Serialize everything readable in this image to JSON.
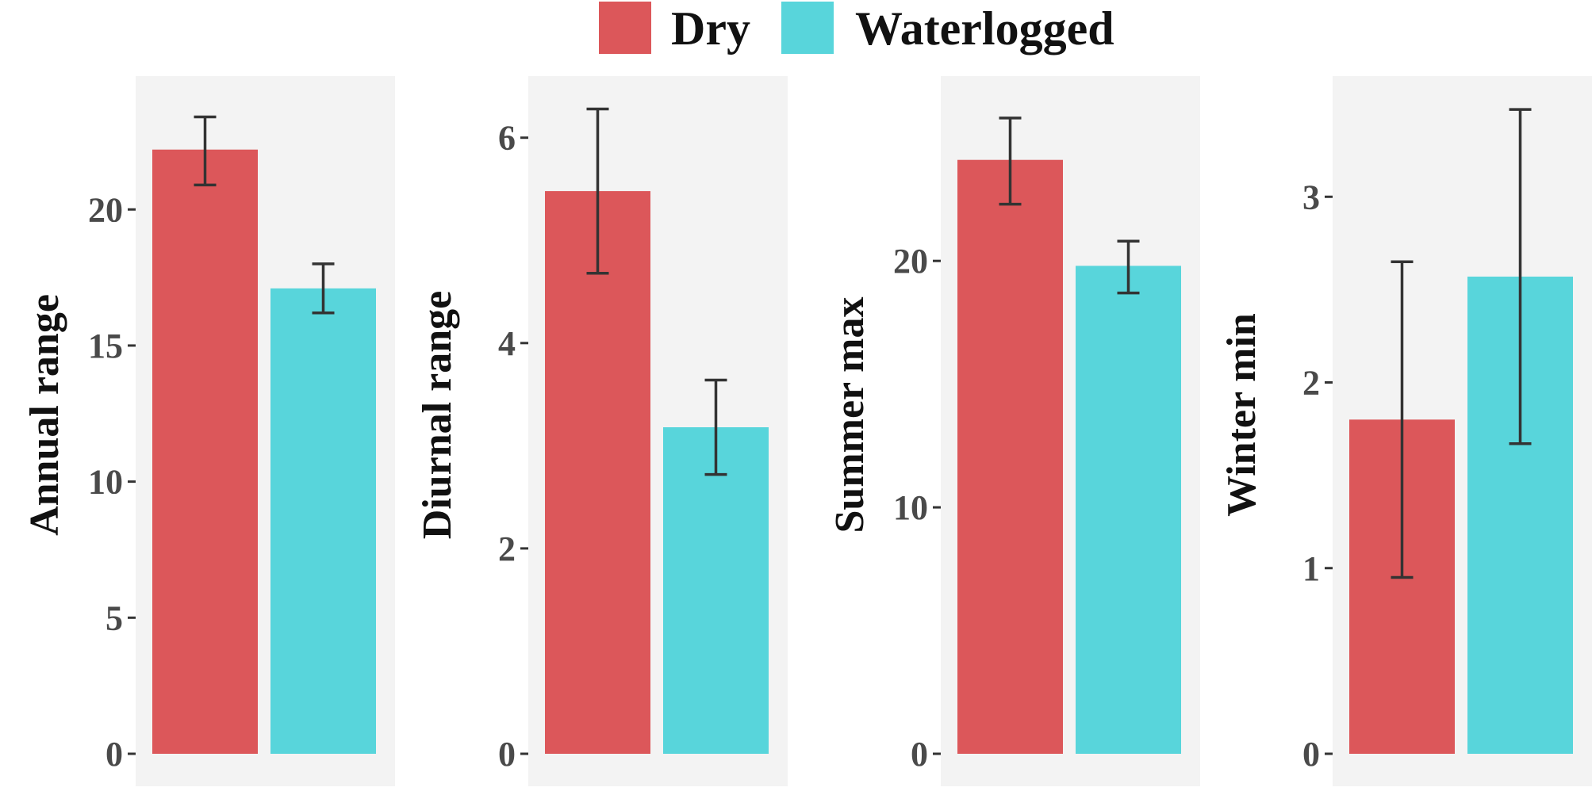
{
  "legend": {
    "items": [
      {
        "label": "Dry",
        "color": "#DC575A"
      },
      {
        "label": "Waterlogged",
        "color": "#58D5DB"
      }
    ]
  },
  "chart_data": [
    {
      "type": "bar",
      "ylabel": "Annual range",
      "ylim": [
        0,
        24.9
      ],
      "yticks": [
        0,
        5,
        10,
        15,
        20
      ],
      "categories": [
        "Dry",
        "Waterlogged"
      ],
      "values": [
        22.2,
        17.1
      ],
      "errors": [
        [
          20.9,
          23.4
        ],
        [
          16.2,
          18.0
        ]
      ],
      "grid": false
    },
    {
      "type": "bar",
      "ylabel": "Diurnal range",
      "ylim": [
        0,
        6.6
      ],
      "yticks": [
        0,
        2,
        4,
        6
      ],
      "categories": [
        "Dry",
        "Waterlogged"
      ],
      "values": [
        5.48,
        3.18
      ],
      "errors": [
        [
          4.68,
          6.28
        ],
        [
          2.72,
          3.64
        ]
      ],
      "grid": false
    },
    {
      "type": "bar",
      "ylabel": "Summer max",
      "ylim": [
        0,
        27.5
      ],
      "yticks": [
        0,
        10,
        20
      ],
      "categories": [
        "Dry",
        "Waterlogged"
      ],
      "values": [
        24.1,
        19.8
      ],
      "errors": [
        [
          22.3,
          25.8
        ],
        [
          18.7,
          20.8
        ]
      ],
      "grid": false
    },
    {
      "type": "bar",
      "ylabel": "Winter min",
      "ylim": [
        0,
        3.65
      ],
      "yticks": [
        0,
        1,
        2,
        3
      ],
      "categories": [
        "Dry",
        "Waterlogged"
      ],
      "values": [
        1.8,
        2.57
      ],
      "errors": [
        [
          0.95,
          2.65
        ],
        [
          1.67,
          3.47
        ]
      ],
      "grid": false
    }
  ]
}
